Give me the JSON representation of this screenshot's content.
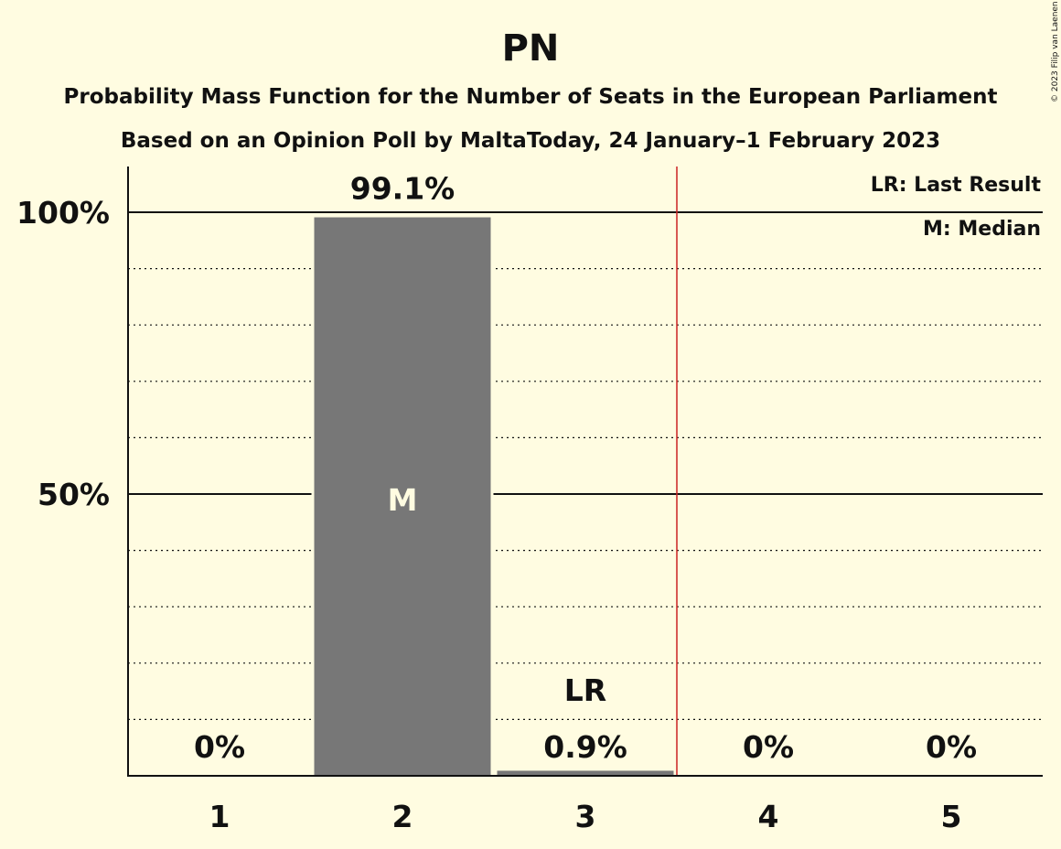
{
  "title": "PN",
  "subtitle1": "Probability Mass Function for the Number of Seats in the European Parliament",
  "subtitle2": "Based on an Opinion Poll by MaltaToday, 24 January–1 February 2023",
  "copyright": "© 2023 Filip van Laenen",
  "legend": {
    "lr": "LR: Last Result",
    "m": "M: Median"
  },
  "colors": {
    "background": "#fffce1",
    "bar": "#777777",
    "last_result_line": "#cc2222",
    "text": "#111111",
    "median_text": "#fffce1"
  },
  "chart_data": {
    "type": "bar",
    "categories": [
      "1",
      "2",
      "3",
      "4",
      "5"
    ],
    "values": [
      0,
      99.1,
      0.9,
      0,
      0
    ],
    "value_labels": [
      "0%",
      "99.1%",
      "0.9%",
      "0%",
      "0%"
    ],
    "yticks": [
      {
        "value": 50,
        "label": "50%"
      },
      {
        "value": 100,
        "label": "100%"
      }
    ],
    "ylim": [
      0,
      108
    ],
    "minor_grid_step": 10,
    "median_category": "2",
    "median_marker": "M",
    "last_result_category": "3",
    "last_result_marker": "LR",
    "last_result_line_after": "3"
  }
}
